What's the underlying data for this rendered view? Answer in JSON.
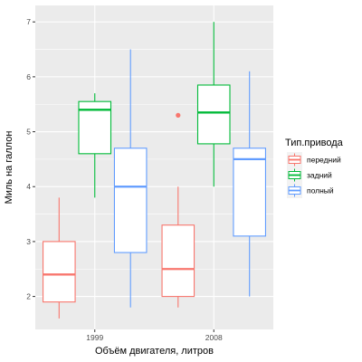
{
  "chart_data": {
    "type": "boxplot",
    "xlabel": "Объём двигателя, литров",
    "ylabel": "Миль на галлон",
    "categories": [
      "1999",
      "2008"
    ],
    "ylim": [
      1.4,
      7.3
    ],
    "yticks": [
      2,
      3,
      4,
      5,
      6,
      7
    ],
    "grid": true,
    "background": "#EBEBEB",
    "legend": {
      "title": "Тип.привода",
      "placement": "right"
    },
    "series": [
      {
        "name": "передний",
        "color": "#F8766D",
        "boxes": [
          {
            "category": "1999",
            "min": 1.6,
            "q1": 1.9,
            "median": 2.4,
            "q3": 3.0,
            "max": 3.8,
            "outliers": []
          },
          {
            "category": "2008",
            "min": 1.8,
            "q1": 2.0,
            "median": 2.5,
            "q3": 3.3,
            "max": 4.0,
            "outliers": [
              5.3
            ]
          }
        ]
      },
      {
        "name": "задний",
        "color": "#00BA38",
        "boxes": [
          {
            "category": "1999",
            "min": 3.8,
            "q1": 4.6,
            "median": 5.4,
            "q3": 5.55,
            "max": 5.7,
            "outliers": []
          },
          {
            "category": "2008",
            "min": 4.0,
            "q1": 4.78,
            "median": 5.35,
            "q3": 5.85,
            "max": 7.0,
            "outliers": []
          }
        ]
      },
      {
        "name": "полный",
        "color": "#619CFF",
        "boxes": [
          {
            "category": "1999",
            "min": 1.8,
            "q1": 2.8,
            "median": 4.0,
            "q3": 4.7,
            "max": 6.5,
            "outliers": []
          },
          {
            "category": "2008",
            "min": 2.0,
            "q1": 3.1,
            "median": 4.5,
            "q3": 4.7,
            "max": 6.1,
            "outliers": []
          }
        ]
      }
    ]
  }
}
